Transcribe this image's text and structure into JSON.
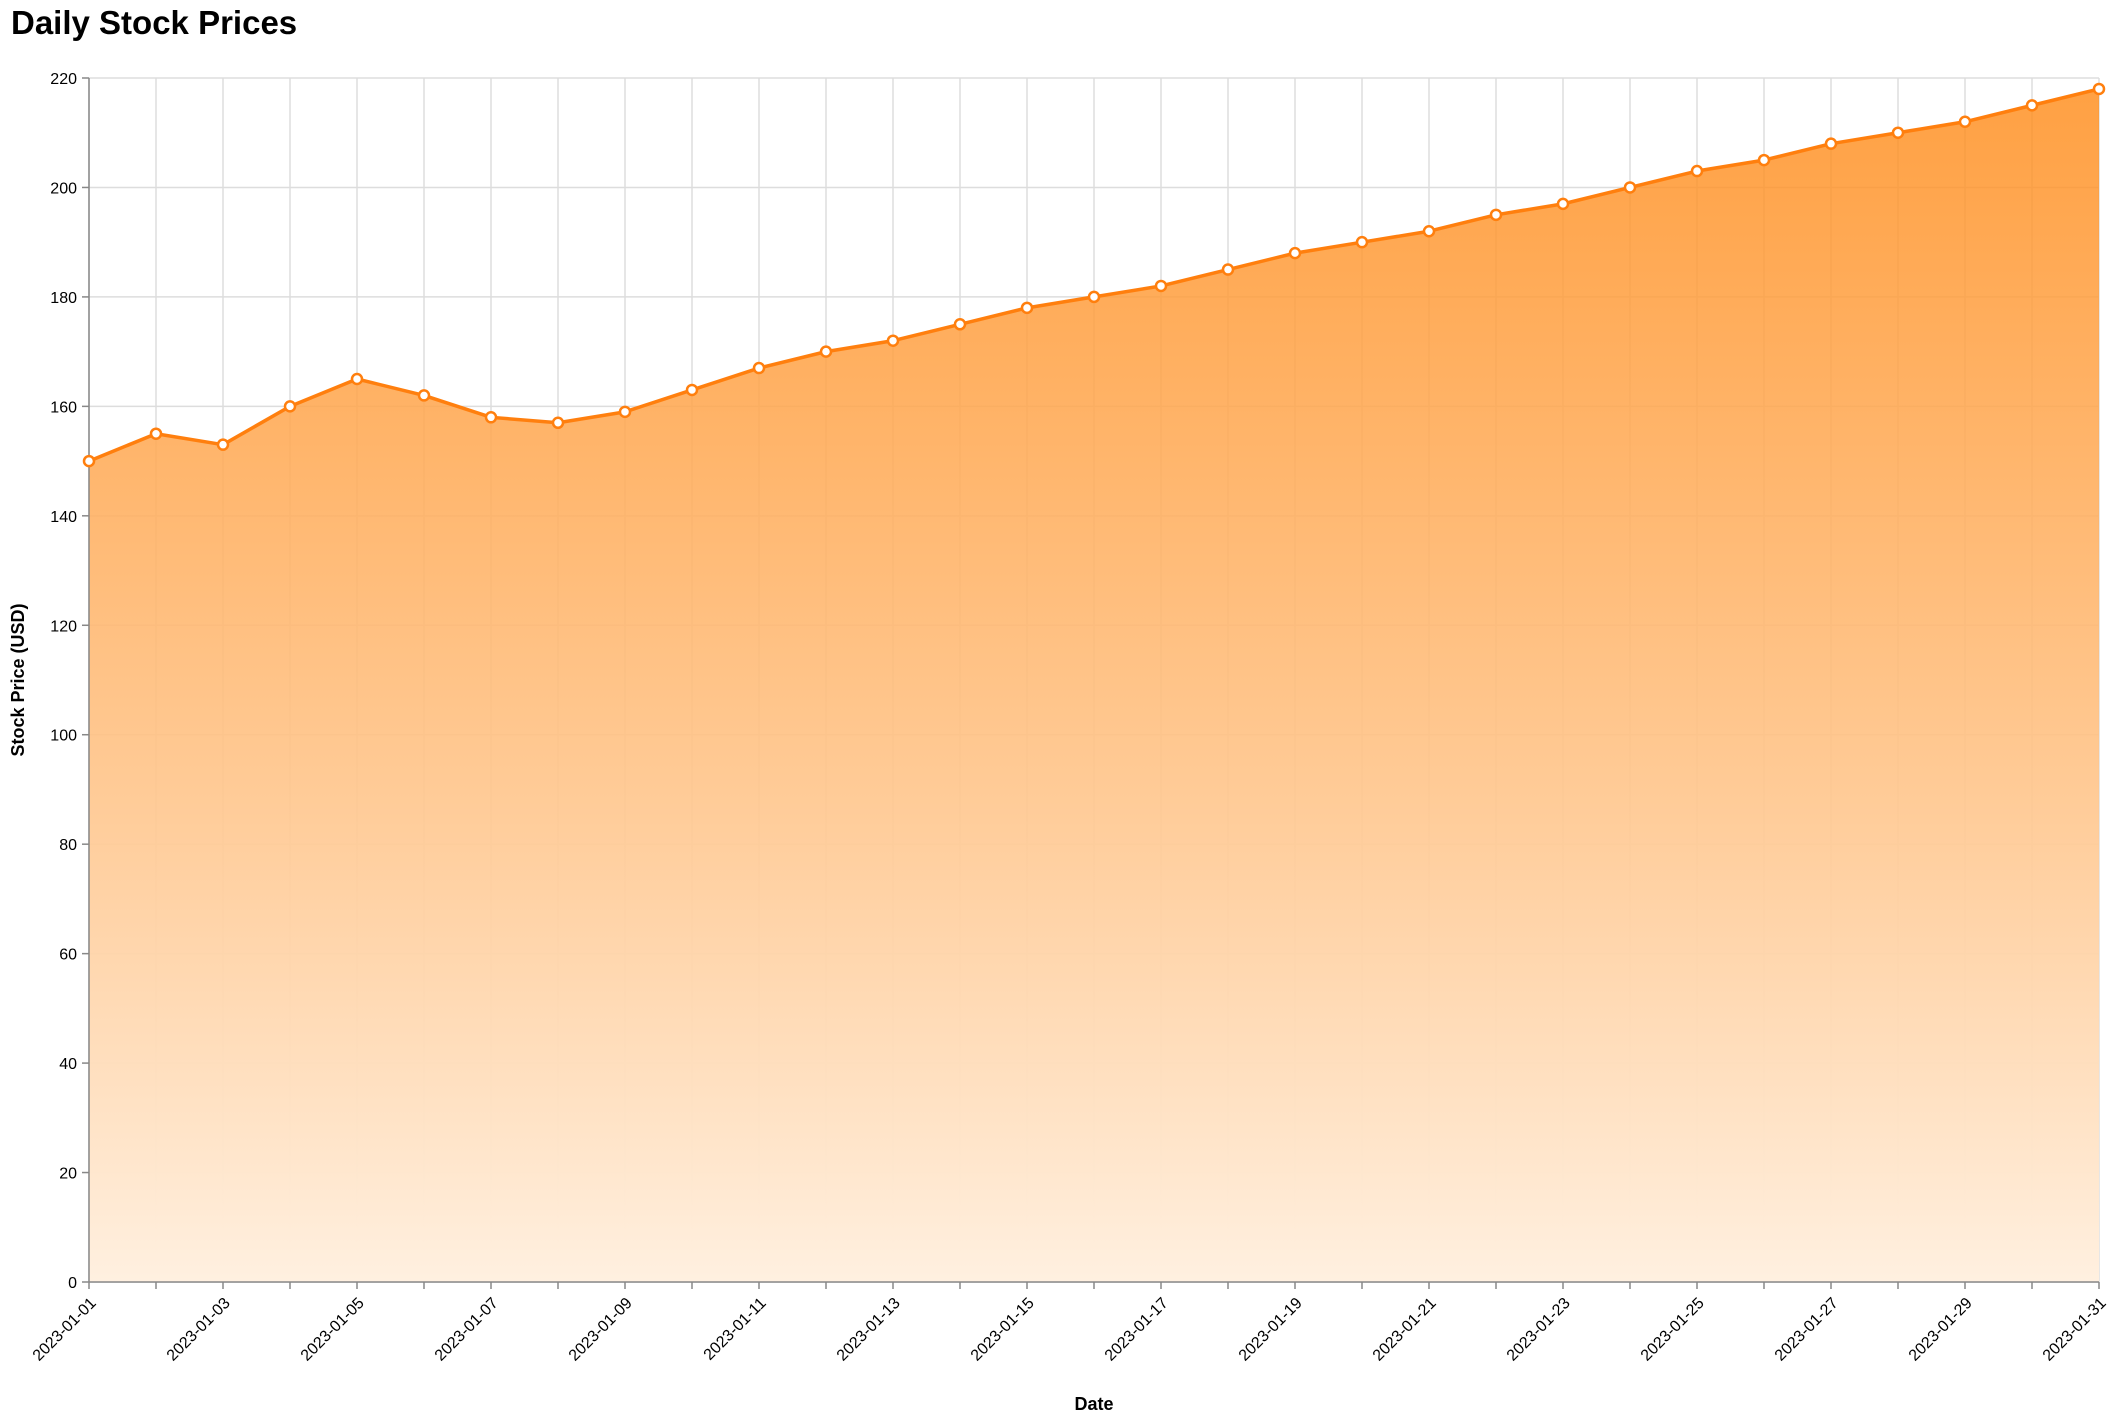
{
  "chart_data": {
    "type": "area",
    "title": "Daily Stock Prices",
    "xlabel": "Date",
    "ylabel": "Stock Price (USD)",
    "ylim": [
      0,
      220
    ],
    "y_ticks": [
      0,
      20,
      40,
      60,
      80,
      100,
      120,
      140,
      160,
      180,
      200,
      220
    ],
    "x_tick_labels": [
      "2023-01-01",
      "2023-01-03",
      "2023-01-05",
      "2023-01-07",
      "2023-01-09",
      "2023-01-11",
      "2023-01-13",
      "2023-01-15",
      "2023-01-17",
      "2023-01-19",
      "2023-01-21",
      "2023-01-23",
      "2023-01-25",
      "2023-01-27",
      "2023-01-29",
      "2023-01-31"
    ],
    "grid": true,
    "x": [
      "2023-01-01",
      "2023-01-02",
      "2023-01-03",
      "2023-01-04",
      "2023-01-05",
      "2023-01-06",
      "2023-01-07",
      "2023-01-08",
      "2023-01-09",
      "2023-01-10",
      "2023-01-11",
      "2023-01-12",
      "2023-01-13",
      "2023-01-14",
      "2023-01-15",
      "2023-01-16",
      "2023-01-17",
      "2023-01-18",
      "2023-01-19",
      "2023-01-20",
      "2023-01-21",
      "2023-01-22",
      "2023-01-23",
      "2023-01-24",
      "2023-01-25",
      "2023-01-26",
      "2023-01-27",
      "2023-01-28",
      "2023-01-29",
      "2023-01-30",
      "2023-01-31"
    ],
    "values": [
      150,
      155,
      153,
      160,
      165,
      162,
      158,
      157,
      159,
      163,
      167,
      170,
      172,
      175,
      178,
      180,
      182,
      185,
      188,
      190,
      192,
      195,
      197,
      200,
      203,
      205,
      208,
      210,
      212,
      215,
      218
    ],
    "colors": {
      "line": "#ff7f0e",
      "area_top": "#ff8c1a",
      "area_bottom": "#fff0e0",
      "grid": "#dddddd",
      "axis": "#888888",
      "point_fill": "#ffffff"
    }
  }
}
